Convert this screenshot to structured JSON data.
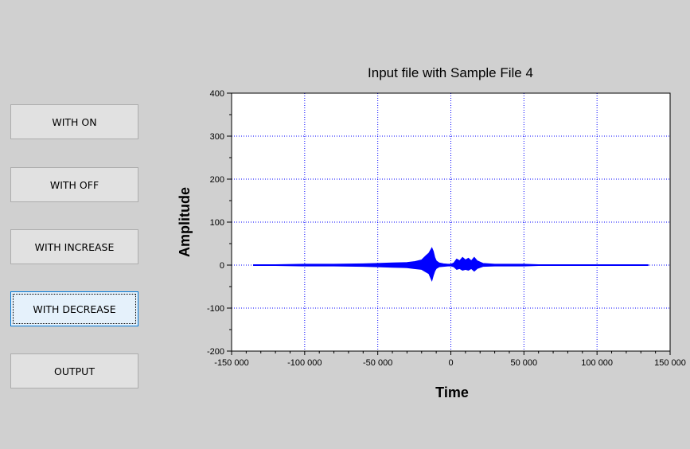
{
  "buttons": {
    "with_on": "WITH ON",
    "with_off": "WITH OFF",
    "with_increase": "WITH INCREASE",
    "with_decrease": "WITH DECREASE",
    "output": "OUTPUT"
  },
  "focused_button": "with_decrease",
  "chart_data": {
    "type": "line",
    "title": "Input file with Sample File 4",
    "xlabel": "Time",
    "ylabel": "Amplitude",
    "xlim": [
      -150000,
      150000
    ],
    "ylim": [
      -200,
      400
    ],
    "xticks": [
      -150000,
      -100000,
      -50000,
      0,
      50000,
      100000,
      150000
    ],
    "xtick_labels": [
      "-150 000",
      "-100 000",
      "-50 000",
      "0",
      "50 000",
      "100 000",
      "150 000"
    ],
    "yticks": [
      -200,
      -100,
      0,
      100,
      200,
      300,
      400
    ],
    "ytick_labels": [
      "-200",
      "-100",
      "0",
      "100",
      "200",
      "300",
      "400"
    ],
    "grid": true,
    "series_color": "#0000ff",
    "grid_color": "#0000ff",
    "series": [
      {
        "x": [
          -135000,
          -120000,
          -100000,
          -80000,
          -60000,
          -50000,
          -40000,
          -30000,
          -25000,
          -20000,
          -17000,
          -15000,
          -13000,
          -12000,
          -11000,
          -10000,
          -8000,
          -5000,
          -2000,
          0,
          2000,
          4000,
          6000,
          8000,
          10000,
          12000,
          14000,
          16000,
          18000,
          22000,
          30000,
          40000,
          50000,
          60000,
          80000,
          100000,
          120000,
          135000
        ],
        "y_upper": [
          1,
          1,
          2,
          2,
          3,
          4,
          5,
          6,
          8,
          12,
          22,
          28,
          40,
          32,
          18,
          10,
          5,
          3,
          2,
          2,
          5,
          14,
          10,
          18,
          12,
          16,
          10,
          18,
          10,
          4,
          2,
          2,
          2,
          1,
          1,
          1,
          1,
          1
        ],
        "y_lower": [
          -1,
          -1,
          -2,
          -2,
          -3,
          -4,
          -5,
          -6,
          -8,
          -10,
          -16,
          -20,
          -36,
          -24,
          -14,
          -8,
          -4,
          -3,
          -2,
          -2,
          -4,
          -10,
          -8,
          -12,
          -10,
          -12,
          -8,
          -14,
          -8,
          -3,
          -2,
          -2,
          -2,
          -1,
          -1,
          -1,
          -1,
          -1
        ]
      }
    ]
  }
}
